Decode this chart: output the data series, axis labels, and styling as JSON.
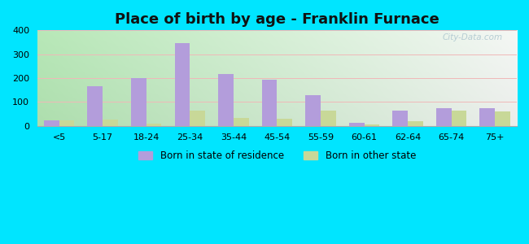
{
  "title": "Place of birth by age - Franklin Furnace",
  "categories": [
    "<5",
    "5-17",
    "18-24",
    "25-34",
    "35-44",
    "45-54",
    "55-59",
    "60-61",
    "62-64",
    "65-74",
    "75+"
  ],
  "born_in_state": [
    22,
    165,
    200,
    345,
    218,
    192,
    127,
    13,
    65,
    75,
    73
  ],
  "born_other_state": [
    22,
    27,
    8,
    65,
    33,
    30,
    65,
    5,
    20,
    65,
    60
  ],
  "bar_color_state": "#b39ddb",
  "bar_color_other": "#c8d898",
  "background_outer": "#00e5ff",
  "ylim": [
    0,
    400
  ],
  "yticks": [
    0,
    100,
    200,
    300,
    400
  ],
  "legend_label_state": "Born in state of residence",
  "legend_label_other": "Born in other state",
  "title_fontsize": 13,
  "bar_width": 0.35,
  "watermark": "City-Data.com",
  "bg_left_bottom": "#b8e8b8",
  "bg_right_top": "#f0faf0",
  "bg_right_bottom": "#e0f5e0",
  "grid_color": "#e0e0e0"
}
